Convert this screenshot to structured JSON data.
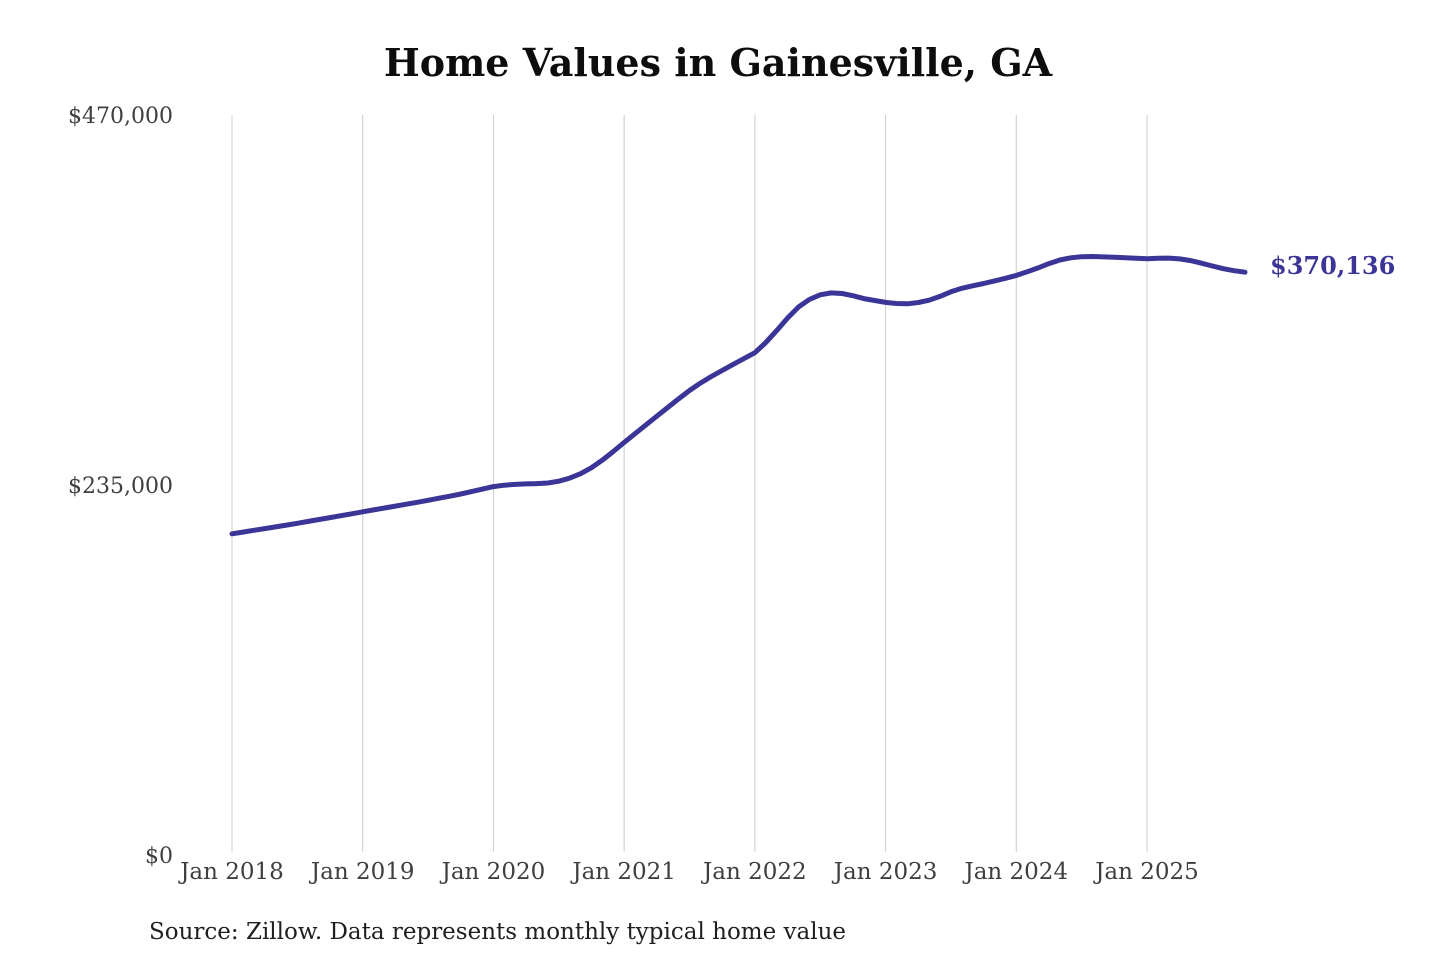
{
  "title": "Home Values in Gainesville, GA",
  "source_note": "Source: Zillow. Data represents monthly typical home value",
  "colors": {
    "line": "#3b3598",
    "gridline": "#cccccc",
    "axis_label": "#3f3f3f",
    "title": "#0d0d0d",
    "source": "#1f1f1f",
    "background": "#ffffff"
  },
  "chart_data": {
    "type": "line",
    "title": "Home Values in Gainesville, GA",
    "series_name": "Typical home value",
    "unit": "USD",
    "grid": "vertical",
    "legend": "none",
    "ylim": [
      0,
      470000
    ],
    "y_ticks": [
      0,
      235000,
      470000
    ],
    "y_tick_labels": [
      "$0",
      "$235,000",
      "$470,000"
    ],
    "x_tick_labels": [
      "Jan 2018",
      "Jan 2019",
      "Jan 2020",
      "Jan 2021",
      "Jan 2022",
      "Jan 2023",
      "Jan 2024",
      "Jan 2025"
    ],
    "final_value": 370136,
    "final_value_label": "$370,136",
    "source": "Source: Zillow. Data represents monthly typical home value",
    "x": [
      "2018-01",
      "2018-02",
      "2018-03",
      "2018-04",
      "2018-05",
      "2018-06",
      "2018-07",
      "2018-08",
      "2018-09",
      "2018-10",
      "2018-11",
      "2018-12",
      "2019-01",
      "2019-02",
      "2019-03",
      "2019-04",
      "2019-05",
      "2019-06",
      "2019-07",
      "2019-08",
      "2019-09",
      "2019-10",
      "2019-11",
      "2019-12",
      "2020-01",
      "2020-02",
      "2020-03",
      "2020-04",
      "2020-05",
      "2020-06",
      "2020-07",
      "2020-08",
      "2020-09",
      "2020-10",
      "2020-11",
      "2020-12",
      "2021-01",
      "2021-02",
      "2021-03",
      "2021-04",
      "2021-05",
      "2021-06",
      "2021-07",
      "2021-08",
      "2021-09",
      "2021-10",
      "2021-11",
      "2021-12",
      "2022-01",
      "2022-02",
      "2022-03",
      "2022-04",
      "2022-05",
      "2022-06",
      "2022-07",
      "2022-08",
      "2022-09",
      "2022-10",
      "2022-11",
      "2022-12",
      "2023-01",
      "2023-02",
      "2023-03",
      "2023-04",
      "2023-05",
      "2023-06",
      "2023-07",
      "2023-08",
      "2023-09",
      "2023-10",
      "2023-11",
      "2023-12",
      "2024-01",
      "2024-02",
      "2024-03",
      "2024-04",
      "2024-05",
      "2024-06",
      "2024-07",
      "2024-08",
      "2024-09",
      "2024-10",
      "2024-11",
      "2024-12",
      "2025-01",
      "2025-02",
      "2025-03",
      "2025-04",
      "2025-05",
      "2025-06",
      "2025-07",
      "2025-08",
      "2025-09",
      "2025-10"
    ],
    "values": [
      204000,
      205100,
      206200,
      207300,
      208400,
      209500,
      210700,
      211900,
      213100,
      214300,
      215500,
      216700,
      218000,
      219200,
      220400,
      221600,
      222800,
      224000,
      225300,
      226600,
      227900,
      229300,
      230800,
      232400,
      234000,
      234900,
      235400,
      235700,
      235900,
      236300,
      237400,
      239400,
      242200,
      246000,
      250800,
      256300,
      262000,
      267600,
      273200,
      278700,
      284200,
      289700,
      295000,
      299700,
      303900,
      307800,
      311600,
      315300,
      319000,
      325500,
      333000,
      341000,
      348000,
      352800,
      355800,
      357000,
      356600,
      355200,
      353400,
      352200,
      351000,
      350300,
      350100,
      350900,
      352400,
      354800,
      357700,
      359900,
      361500,
      363000,
      364600,
      366300,
      368100,
      370400,
      372900,
      375600,
      377900,
      379300,
      380000,
      380100,
      379900,
      379600,
      379300,
      379000,
      378700,
      379000,
      379100,
      378600,
      377500,
      375900,
      374100,
      372400,
      371100,
      370136
    ]
  }
}
